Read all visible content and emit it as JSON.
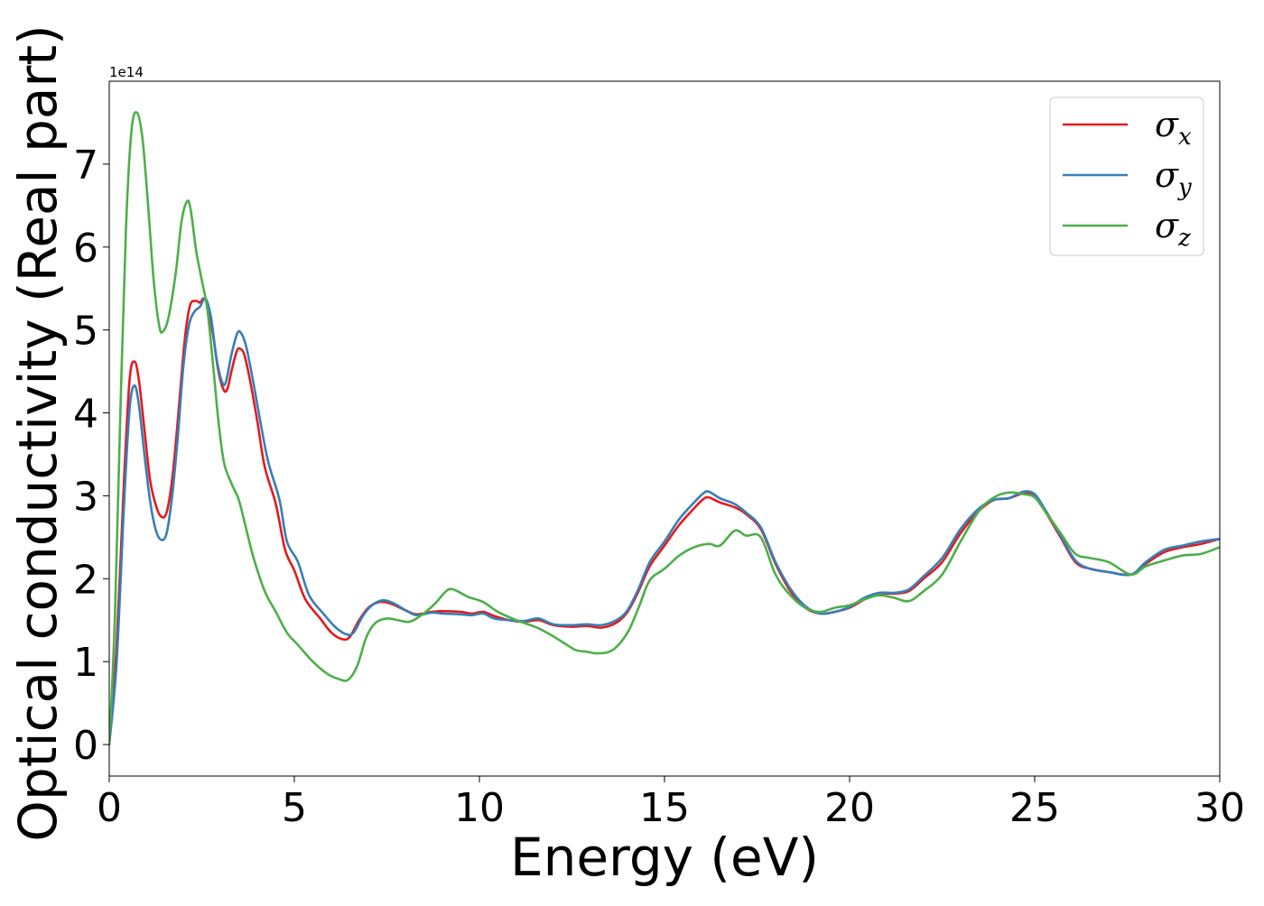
{
  "chart_data": {
    "type": "line",
    "xlabel": "Energy (eV)",
    "ylabel": "Optical conductivity (Real part)",
    "y_offset_text": "1e14",
    "xlim": [
      0,
      30
    ],
    "ylim": [
      -0.38,
      8.0
    ],
    "x_ticks": [
      0,
      5,
      10,
      15,
      20,
      25,
      30
    ],
    "x_tick_labels": [
      "0",
      "5",
      "10",
      "15",
      "20",
      "25",
      "30"
    ],
    "y_ticks": [
      0,
      1,
      2,
      3,
      4,
      5,
      6,
      7
    ],
    "y_tick_labels": [
      "0",
      "1",
      "2",
      "3",
      "4",
      "5",
      "6",
      "7"
    ],
    "grid": false,
    "legend_position": "top-right",
    "series": [
      {
        "name": "σx",
        "symbol": "σ",
        "subscript": "x",
        "color": "#e41a1c",
        "points": [
          [
            0,
            0
          ],
          [
            0.2,
            1.2
          ],
          [
            0.4,
            3.2
          ],
          [
            0.55,
            4.4
          ],
          [
            0.68,
            4.62
          ],
          [
            0.8,
            4.4
          ],
          [
            0.95,
            3.8
          ],
          [
            1.1,
            3.2
          ],
          [
            1.25,
            2.9
          ],
          [
            1.4,
            2.75
          ],
          [
            1.55,
            2.8
          ],
          [
            1.7,
            3.2
          ],
          [
            1.85,
            3.9
          ],
          [
            2.0,
            4.7
          ],
          [
            2.1,
            5.1
          ],
          [
            2.2,
            5.32
          ],
          [
            2.35,
            5.35
          ],
          [
            2.45,
            5.33
          ],
          [
            2.55,
            5.38
          ],
          [
            2.65,
            5.3
          ],
          [
            2.8,
            4.95
          ],
          [
            2.95,
            4.5
          ],
          [
            3.1,
            4.27
          ],
          [
            3.2,
            4.3
          ],
          [
            3.3,
            4.5
          ],
          [
            3.45,
            4.75
          ],
          [
            3.55,
            4.77
          ],
          [
            3.65,
            4.7
          ],
          [
            3.8,
            4.4
          ],
          [
            4.0,
            3.9
          ],
          [
            4.2,
            3.35
          ],
          [
            4.5,
            2.9
          ],
          [
            4.75,
            2.35
          ],
          [
            5.0,
            2.1
          ],
          [
            5.3,
            1.75
          ],
          [
            5.7,
            1.52
          ],
          [
            6.0,
            1.35
          ],
          [
            6.3,
            1.27
          ],
          [
            6.5,
            1.3
          ],
          [
            6.75,
            1.5
          ],
          [
            7.0,
            1.65
          ],
          [
            7.3,
            1.72
          ],
          [
            7.6,
            1.7
          ],
          [
            8.0,
            1.62
          ],
          [
            8.3,
            1.57
          ],
          [
            8.7,
            1.6
          ],
          [
            9.0,
            1.61
          ],
          [
            9.5,
            1.6
          ],
          [
            9.8,
            1.58
          ],
          [
            10.1,
            1.6
          ],
          [
            10.4,
            1.55
          ],
          [
            10.8,
            1.5
          ],
          [
            11.2,
            1.48
          ],
          [
            11.6,
            1.5
          ],
          [
            12.0,
            1.44
          ],
          [
            12.5,
            1.42
          ],
          [
            12.9,
            1.43
          ],
          [
            13.3,
            1.41
          ],
          [
            13.7,
            1.47
          ],
          [
            14.0,
            1.6
          ],
          [
            14.3,
            1.85
          ],
          [
            14.6,
            2.15
          ],
          [
            15.0,
            2.4
          ],
          [
            15.4,
            2.65
          ],
          [
            15.8,
            2.85
          ],
          [
            16.05,
            2.96
          ],
          [
            16.2,
            2.98
          ],
          [
            16.5,
            2.92
          ],
          [
            16.9,
            2.86
          ],
          [
            17.2,
            2.78
          ],
          [
            17.6,
            2.6
          ],
          [
            18.0,
            2.18
          ],
          [
            18.4,
            1.85
          ],
          [
            18.8,
            1.65
          ],
          [
            19.2,
            1.58
          ],
          [
            19.6,
            1.6
          ],
          [
            20.0,
            1.65
          ],
          [
            20.4,
            1.75
          ],
          [
            20.8,
            1.82
          ],
          [
            21.2,
            1.82
          ],
          [
            21.6,
            1.85
          ],
          [
            22.0,
            2.0
          ],
          [
            22.5,
            2.2
          ],
          [
            23.0,
            2.55
          ],
          [
            23.5,
            2.82
          ],
          [
            23.9,
            2.95
          ],
          [
            24.3,
            2.97
          ],
          [
            24.7,
            3.03
          ],
          [
            25.0,
            3.0
          ],
          [
            25.3,
            2.8
          ],
          [
            25.7,
            2.5
          ],
          [
            26.1,
            2.2
          ],
          [
            26.5,
            2.12
          ],
          [
            27.0,
            2.08
          ],
          [
            27.6,
            2.05
          ],
          [
            28.0,
            2.18
          ],
          [
            28.5,
            2.32
          ],
          [
            29.0,
            2.38
          ],
          [
            29.5,
            2.42
          ],
          [
            30.0,
            2.48
          ]
        ]
      },
      {
        "name": "σy",
        "symbol": "σ",
        "subscript": "y",
        "color": "#377eb8",
        "points": [
          [
            0,
            0
          ],
          [
            0.2,
            1.0
          ],
          [
            0.4,
            2.9
          ],
          [
            0.55,
            4.05
          ],
          [
            0.68,
            4.33
          ],
          [
            0.8,
            4.1
          ],
          [
            0.95,
            3.5
          ],
          [
            1.1,
            2.95
          ],
          [
            1.25,
            2.6
          ],
          [
            1.4,
            2.47
          ],
          [
            1.55,
            2.55
          ],
          [
            1.7,
            3.0
          ],
          [
            1.85,
            3.7
          ],
          [
            2.0,
            4.55
          ],
          [
            2.15,
            5.05
          ],
          [
            2.3,
            5.22
          ],
          [
            2.45,
            5.28
          ],
          [
            2.6,
            5.38
          ],
          [
            2.75,
            5.15
          ],
          [
            2.9,
            4.65
          ],
          [
            3.05,
            4.37
          ],
          [
            3.15,
            4.37
          ],
          [
            3.3,
            4.7
          ],
          [
            3.45,
            4.95
          ],
          [
            3.55,
            4.97
          ],
          [
            3.7,
            4.8
          ],
          [
            3.9,
            4.35
          ],
          [
            4.1,
            3.85
          ],
          [
            4.3,
            3.4
          ],
          [
            4.6,
            2.95
          ],
          [
            4.8,
            2.45
          ],
          [
            5.1,
            2.2
          ],
          [
            5.4,
            1.8
          ],
          [
            5.8,
            1.57
          ],
          [
            6.1,
            1.42
          ],
          [
            6.4,
            1.33
          ],
          [
            6.6,
            1.35
          ],
          [
            6.85,
            1.55
          ],
          [
            7.1,
            1.68
          ],
          [
            7.4,
            1.74
          ],
          [
            7.7,
            1.7
          ],
          [
            8.0,
            1.62
          ],
          [
            8.3,
            1.56
          ],
          [
            8.7,
            1.59
          ],
          [
            9.0,
            1.58
          ],
          [
            9.5,
            1.57
          ],
          [
            9.8,
            1.56
          ],
          [
            10.1,
            1.58
          ],
          [
            10.4,
            1.52
          ],
          [
            10.8,
            1.5
          ],
          [
            11.2,
            1.49
          ],
          [
            11.6,
            1.52
          ],
          [
            12.0,
            1.45
          ],
          [
            12.5,
            1.44
          ],
          [
            12.9,
            1.45
          ],
          [
            13.3,
            1.44
          ],
          [
            13.7,
            1.5
          ],
          [
            14.0,
            1.62
          ],
          [
            14.3,
            1.88
          ],
          [
            14.6,
            2.2
          ],
          [
            15.0,
            2.45
          ],
          [
            15.4,
            2.72
          ],
          [
            15.8,
            2.92
          ],
          [
            16.05,
            3.03
          ],
          [
            16.2,
            3.05
          ],
          [
            16.5,
            2.97
          ],
          [
            16.9,
            2.9
          ],
          [
            17.2,
            2.8
          ],
          [
            17.6,
            2.62
          ],
          [
            18.0,
            2.2
          ],
          [
            18.4,
            1.88
          ],
          [
            18.8,
            1.67
          ],
          [
            19.2,
            1.58
          ],
          [
            19.6,
            1.6
          ],
          [
            20.0,
            1.66
          ],
          [
            20.4,
            1.77
          ],
          [
            20.8,
            1.83
          ],
          [
            21.2,
            1.83
          ],
          [
            21.6,
            1.87
          ],
          [
            22.0,
            2.03
          ],
          [
            22.5,
            2.25
          ],
          [
            23.0,
            2.6
          ],
          [
            23.5,
            2.85
          ],
          [
            23.9,
            2.95
          ],
          [
            24.3,
            2.97
          ],
          [
            24.7,
            3.05
          ],
          [
            25.0,
            3.02
          ],
          [
            25.3,
            2.82
          ],
          [
            25.7,
            2.52
          ],
          [
            26.1,
            2.22
          ],
          [
            26.5,
            2.12
          ],
          [
            27.0,
            2.08
          ],
          [
            27.6,
            2.05
          ],
          [
            28.0,
            2.2
          ],
          [
            28.5,
            2.35
          ],
          [
            29.0,
            2.4
          ],
          [
            29.5,
            2.45
          ],
          [
            30.0,
            2.48
          ]
        ]
      },
      {
        "name": "σz",
        "symbol": "σ",
        "subscript": "z",
        "color": "#4daf4a",
        "points": [
          [
            0,
            0
          ],
          [
            0.15,
            1.5
          ],
          [
            0.3,
            4.0
          ],
          [
            0.45,
            6.2
          ],
          [
            0.6,
            7.4
          ],
          [
            0.75,
            7.62
          ],
          [
            0.9,
            7.3
          ],
          [
            1.05,
            6.5
          ],
          [
            1.2,
            5.6
          ],
          [
            1.35,
            5.05
          ],
          [
            1.45,
            4.98
          ],
          [
            1.6,
            5.15
          ],
          [
            1.8,
            5.7
          ],
          [
            1.95,
            6.3
          ],
          [
            2.1,
            6.55
          ],
          [
            2.2,
            6.45
          ],
          [
            2.35,
            5.95
          ],
          [
            2.5,
            5.6
          ],
          [
            2.65,
            5.25
          ],
          [
            2.8,
            4.6
          ],
          [
            2.95,
            3.9
          ],
          [
            3.1,
            3.4
          ],
          [
            3.3,
            3.15
          ],
          [
            3.5,
            2.95
          ],
          [
            3.7,
            2.6
          ],
          [
            3.9,
            2.25
          ],
          [
            4.2,
            1.85
          ],
          [
            4.5,
            1.6
          ],
          [
            4.8,
            1.35
          ],
          [
            5.1,
            1.2
          ],
          [
            5.5,
            1.0
          ],
          [
            5.9,
            0.85
          ],
          [
            6.2,
            0.79
          ],
          [
            6.45,
            0.78
          ],
          [
            6.7,
            0.95
          ],
          [
            6.95,
            1.3
          ],
          [
            7.2,
            1.47
          ],
          [
            7.5,
            1.52
          ],
          [
            7.8,
            1.5
          ],
          [
            8.1,
            1.48
          ],
          [
            8.4,
            1.55
          ],
          [
            8.8,
            1.7
          ],
          [
            9.1,
            1.85
          ],
          [
            9.3,
            1.87
          ],
          [
            9.7,
            1.78
          ],
          [
            10.1,
            1.72
          ],
          [
            10.5,
            1.6
          ],
          [
            11.0,
            1.5
          ],
          [
            11.5,
            1.42
          ],
          [
            11.9,
            1.33
          ],
          [
            12.3,
            1.22
          ],
          [
            12.6,
            1.14
          ],
          [
            12.9,
            1.12
          ],
          [
            13.2,
            1.1
          ],
          [
            13.6,
            1.14
          ],
          [
            14.0,
            1.35
          ],
          [
            14.3,
            1.65
          ],
          [
            14.6,
            1.98
          ],
          [
            15.0,
            2.12
          ],
          [
            15.4,
            2.28
          ],
          [
            15.8,
            2.38
          ],
          [
            16.2,
            2.42
          ],
          [
            16.5,
            2.4
          ],
          [
            16.9,
            2.58
          ],
          [
            17.2,
            2.52
          ],
          [
            17.6,
            2.5
          ],
          [
            18.0,
            2.05
          ],
          [
            18.4,
            1.8
          ],
          [
            18.8,
            1.65
          ],
          [
            19.2,
            1.6
          ],
          [
            19.6,
            1.65
          ],
          [
            20.0,
            1.68
          ],
          [
            20.4,
            1.75
          ],
          [
            20.8,
            1.8
          ],
          [
            21.2,
            1.77
          ],
          [
            21.6,
            1.73
          ],
          [
            22.0,
            1.85
          ],
          [
            22.5,
            2.05
          ],
          [
            23.0,
            2.45
          ],
          [
            23.5,
            2.82
          ],
          [
            23.9,
            2.98
          ],
          [
            24.3,
            3.04
          ],
          [
            24.7,
            3.02
          ],
          [
            25.0,
            2.98
          ],
          [
            25.3,
            2.8
          ],
          [
            25.7,
            2.55
          ],
          [
            26.1,
            2.3
          ],
          [
            26.5,
            2.25
          ],
          [
            27.0,
            2.2
          ],
          [
            27.6,
            2.05
          ],
          [
            28.0,
            2.15
          ],
          [
            28.5,
            2.22
          ],
          [
            29.0,
            2.28
          ],
          [
            29.5,
            2.3
          ],
          [
            30.0,
            2.38
          ]
        ]
      }
    ]
  }
}
